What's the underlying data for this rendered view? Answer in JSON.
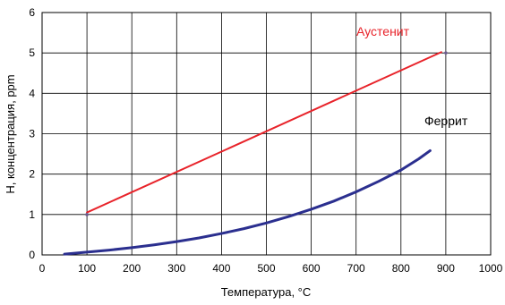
{
  "chart_data": {
    "type": "line",
    "title": "",
    "xlabel": "Температура, °C",
    "ylabel": "H, концентрация, ppm",
    "xlim": [
      0,
      1000
    ],
    "ylim": [
      0,
      6
    ],
    "xticks": [
      "0",
      "100",
      "200",
      "300",
      "400",
      "500",
      "600",
      "700",
      "800",
      "900",
      "1000"
    ],
    "yticks": [
      "0",
      "1",
      "2",
      "3",
      "4",
      "5",
      "6"
    ],
    "grid": true,
    "series": [
      {
        "name": "Аустенит",
        "color": "#e8232a",
        "points": [
          [
            100,
            1.05
          ],
          [
            890,
            5.02
          ]
        ],
        "markers": [
          [
            100,
            1.0
          ],
          [
            900,
            5.0
          ]
        ]
      },
      {
        "name": "Феррит",
        "color": "#2b2f8f",
        "points": [
          [
            50,
            0.02
          ],
          [
            100,
            0.07
          ],
          [
            150,
            0.12
          ],
          [
            200,
            0.18
          ],
          [
            250,
            0.25
          ],
          [
            300,
            0.33
          ],
          [
            350,
            0.42
          ],
          [
            400,
            0.53
          ],
          [
            450,
            0.65
          ],
          [
            500,
            0.79
          ],
          [
            550,
            0.95
          ],
          [
            600,
            1.13
          ],
          [
            650,
            1.33
          ],
          [
            700,
            1.56
          ],
          [
            750,
            1.82
          ],
          [
            800,
            2.1
          ],
          [
            840,
            2.38
          ],
          [
            865,
            2.58
          ]
        ]
      }
    ]
  }
}
